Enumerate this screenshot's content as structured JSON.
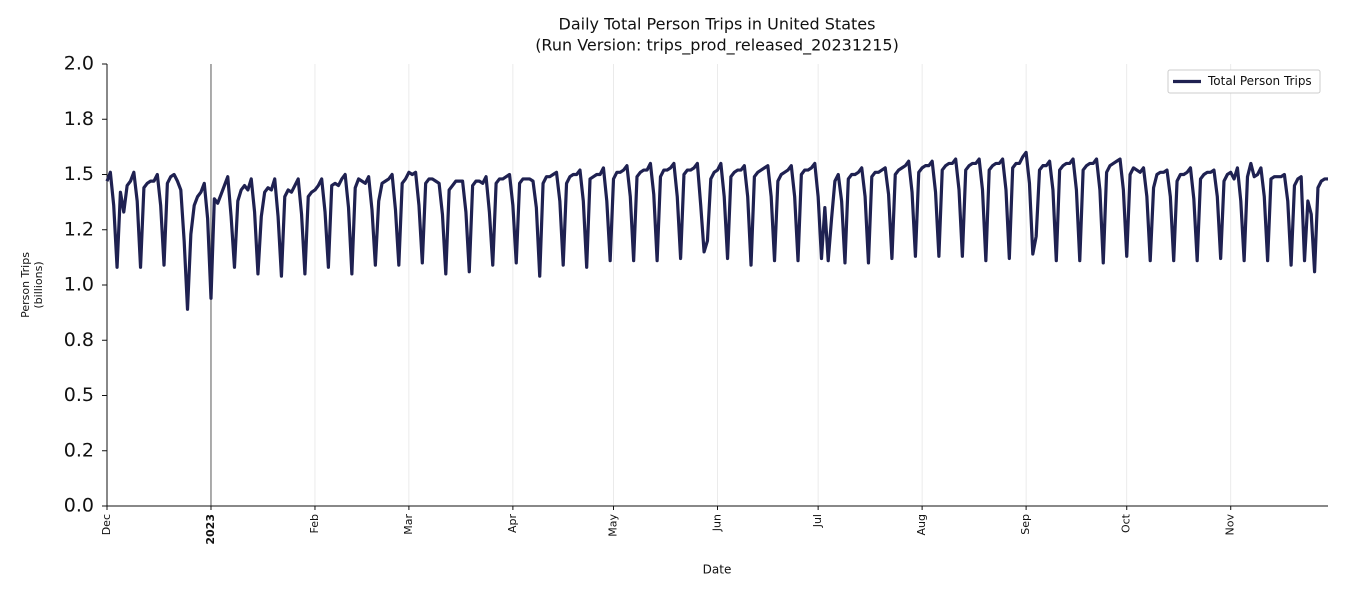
{
  "chart_data": {
    "type": "line",
    "title": "Daily Total Person Trips in United States",
    "subtitle": "(Run Version: trips_prod_released_20231215)",
    "xlabel": "Date",
    "ylabel": [
      "Person Trips",
      "(billions)"
    ],
    "ylim": [
      0,
      2
    ],
    "yticks": [
      {
        "value": 0,
        "label": "0.0"
      },
      {
        "value": 0.25,
        "label": "0.2"
      },
      {
        "value": 0.5,
        "label": "0.5"
      },
      {
        "value": 0.75,
        "label": "0.8"
      },
      {
        "value": 1,
        "label": "1.0"
      },
      {
        "value": 1.25,
        "label": "1.2"
      },
      {
        "value": 1.5,
        "label": "1.5"
      },
      {
        "value": 1.75,
        "label": "1.8"
      },
      {
        "value": 2,
        "label": "2.0"
      }
    ],
    "grid": true,
    "legend": "upper right",
    "categories": [
      "Dec",
      null,
      null,
      null,
      null,
      null,
      null,
      null,
      null,
      null,
      null,
      null,
      null,
      null,
      null,
      null,
      null,
      null,
      null,
      null,
      null,
      null,
      null,
      null,
      null,
      null,
      null,
      null,
      null,
      null,
      null,
      "2023",
      null,
      null,
      null,
      null,
      null,
      null,
      null,
      null,
      null,
      null,
      null,
      null,
      null,
      null,
      null,
      null,
      null,
      null,
      null,
      null,
      null,
      null,
      null,
      null,
      null,
      null,
      null,
      null,
      null,
      null,
      "Feb",
      null,
      null,
      null,
      null,
      null,
      null,
      null,
      null,
      null,
      null,
      null,
      null,
      null,
      null,
      null,
      null,
      null,
      null,
      null,
      null,
      null,
      null,
      null,
      null,
      null,
      null,
      null,
      "Mar",
      null,
      null,
      null,
      null,
      null,
      null,
      null,
      null,
      null,
      null,
      null,
      null,
      null,
      null,
      null,
      null,
      null,
      null,
      null,
      null,
      null,
      null,
      null,
      null,
      null,
      null,
      null,
      null,
      null,
      null,
      "Apr",
      null,
      null,
      null,
      null,
      null,
      null,
      null,
      null,
      null,
      null,
      null,
      null,
      null,
      null,
      null,
      null,
      null,
      null,
      null,
      null,
      null,
      null,
      null,
      null,
      null,
      null,
      null,
      null,
      null,
      "May",
      null,
      null,
      null,
      null,
      null,
      null,
      null,
      null,
      null,
      null,
      null,
      null,
      null,
      null,
      null,
      null,
      null,
      null,
      null,
      null,
      null,
      null,
      null,
      null,
      null,
      null,
      null,
      null,
      null,
      null,
      "Jun",
      null,
      null,
      null,
      null,
      null,
      null,
      null,
      null,
      null,
      null,
      null,
      null,
      null,
      null,
      null,
      null,
      null,
      null,
      null,
      null,
      null,
      null,
      null,
      null,
      null,
      null,
      null,
      null,
      null,
      "Jul",
      null,
      null,
      null,
      null,
      null,
      null,
      null,
      null,
      null,
      null,
      null,
      null,
      null,
      null,
      null,
      null,
      null,
      null,
      null,
      null,
      null,
      null,
      null,
      null,
      null,
      null,
      null,
      null,
      null,
      null,
      "Aug",
      null,
      null,
      null,
      null,
      null,
      null,
      null,
      null,
      null,
      null,
      null,
      null,
      null,
      null,
      null,
      null,
      null,
      null,
      null,
      null,
      null,
      null,
      null,
      null,
      null,
      null,
      null,
      null,
      null,
      null,
      "Sep",
      null,
      null,
      null,
      null,
      null,
      null,
      null,
      null,
      null,
      null,
      null,
      null,
      null,
      null,
      null,
      null,
      null,
      null,
      null,
      null,
      null,
      null,
      null,
      null,
      null,
      null,
      null,
      null,
      null,
      "Oct",
      null,
      null,
      null,
      null,
      null,
      null,
      null,
      null,
      null,
      null,
      null,
      null,
      null,
      null,
      null,
      null,
      null,
      null,
      null,
      null,
      null,
      null,
      null,
      null,
      null,
      null,
      null,
      null,
      null,
      null,
      "Nov",
      null,
      null,
      null,
      null,
      null,
      null,
      null,
      null,
      null,
      null,
      null,
      null,
      null,
      null,
      null,
      null,
      null,
      null,
      null,
      null,
      null,
      null,
      null,
      null,
      null,
      null,
      null,
      null,
      null
    ],
    "series": [
      {
        "name": "Total Person Trips",
        "color": "#1f2151",
        "values": [
          1.47,
          1.51,
          1.36,
          1.08,
          1.42,
          1.33,
          1.45,
          1.47,
          1.51,
          1.38,
          1.08,
          1.44,
          1.46,
          1.47,
          1.47,
          1.5,
          1.36,
          1.09,
          1.46,
          1.49,
          1.5,
          1.47,
          1.43,
          1.2,
          0.89,
          1.23,
          1.36,
          1.4,
          1.42,
          1.46,
          1.3,
          0.94,
          1.39,
          1.37,
          1.41,
          1.45,
          1.49,
          1.31,
          1.08,
          1.38,
          1.43,
          1.45,
          1.43,
          1.48,
          1.33,
          1.05,
          1.31,
          1.42,
          1.44,
          1.43,
          1.48,
          1.31,
          1.04,
          1.4,
          1.43,
          1.42,
          1.45,
          1.48,
          1.32,
          1.05,
          1.4,
          1.42,
          1.43,
          1.45,
          1.48,
          1.33,
          1.08,
          1.45,
          1.46,
          1.45,
          1.48,
          1.5,
          1.35,
          1.05,
          1.44,
          1.48,
          1.47,
          1.46,
          1.49,
          1.34,
          1.09,
          1.38,
          1.46,
          1.47,
          1.48,
          1.5,
          1.34,
          1.09,
          1.46,
          1.48,
          1.51,
          1.5,
          1.51,
          1.36,
          1.1,
          1.46,
          1.48,
          1.48,
          1.47,
          1.46,
          1.32,
          1.05,
          1.43,
          1.45,
          1.47,
          1.47,
          1.47,
          1.33,
          1.06,
          1.45,
          1.47,
          1.47,
          1.46,
          1.49,
          1.33,
          1.09,
          1.46,
          1.48,
          1.48,
          1.49,
          1.5,
          1.36,
          1.1,
          1.46,
          1.48,
          1.48,
          1.48,
          1.47,
          1.35,
          1.04,
          1.46,
          1.49,
          1.49,
          1.5,
          1.51,
          1.38,
          1.09,
          1.46,
          1.49,
          1.5,
          1.5,
          1.52,
          1.38,
          1.08,
          1.48,
          1.49,
          1.5,
          1.5,
          1.53,
          1.38,
          1.11,
          1.48,
          1.51,
          1.51,
          1.52,
          1.54,
          1.4,
          1.11,
          1.49,
          1.51,
          1.52,
          1.52,
          1.55,
          1.41,
          1.11,
          1.49,
          1.52,
          1.52,
          1.53,
          1.55,
          1.4,
          1.12,
          1.5,
          1.52,
          1.52,
          1.53,
          1.55,
          1.36,
          1.15,
          1.2,
          1.48,
          1.51,
          1.52,
          1.55,
          1.4,
          1.12,
          1.49,
          1.51,
          1.52,
          1.52,
          1.54,
          1.4,
          1.09,
          1.49,
          1.51,
          1.52,
          1.53,
          1.54,
          1.4,
          1.11,
          1.47,
          1.5,
          1.51,
          1.52,
          1.54,
          1.4,
          1.11,
          1.5,
          1.52,
          1.52,
          1.53,
          1.55,
          1.4,
          1.12,
          1.35,
          1.11,
          1.3,
          1.47,
          1.5,
          1.38,
          1.1,
          1.48,
          1.5,
          1.5,
          1.51,
          1.53,
          1.4,
          1.1,
          1.49,
          1.51,
          1.51,
          1.52,
          1.53,
          1.41,
          1.12,
          1.5,
          1.52,
          1.53,
          1.54,
          1.56,
          1.42,
          1.13,
          1.51,
          1.53,
          1.54,
          1.54,
          1.56,
          1.42,
          1.13,
          1.52,
          1.54,
          1.55,
          1.55,
          1.57,
          1.43,
          1.13,
          1.52,
          1.54,
          1.55,
          1.55,
          1.57,
          1.43,
          1.11,
          1.52,
          1.54,
          1.55,
          1.55,
          1.57,
          1.43,
          1.12,
          1.53,
          1.55,
          1.55,
          1.58,
          1.6,
          1.46,
          1.14,
          1.22,
          1.52,
          1.54,
          1.54,
          1.56,
          1.43,
          1.11,
          1.52,
          1.54,
          1.55,
          1.55,
          1.57,
          1.43,
          1.11,
          1.52,
          1.54,
          1.55,
          1.55,
          1.57,
          1.43,
          1.1,
          1.51,
          1.54,
          1.55,
          1.56,
          1.57,
          1.43,
          1.13,
          1.5,
          1.53,
          1.52,
          1.51,
          1.53,
          1.4,
          1.11,
          1.44,
          1.5,
          1.51,
          1.51,
          1.52,
          1.4,
          1.11,
          1.47,
          1.5,
          1.5,
          1.51,
          1.53,
          1.39,
          1.11,
          1.48,
          1.5,
          1.51,
          1.51,
          1.52,
          1.4,
          1.12,
          1.47,
          1.5,
          1.51,
          1.48,
          1.53,
          1.38,
          1.11,
          1.49,
          1.55,
          1.49,
          1.5,
          1.53,
          1.4,
          1.11,
          1.48,
          1.49,
          1.49,
          1.49,
          1.5,
          1.38,
          1.09,
          1.45,
          1.48,
          1.49,
          1.11,
          1.38,
          1.32,
          1.06,
          1.44,
          1.47,
          1.48,
          1.48
        ]
      }
    ]
  }
}
